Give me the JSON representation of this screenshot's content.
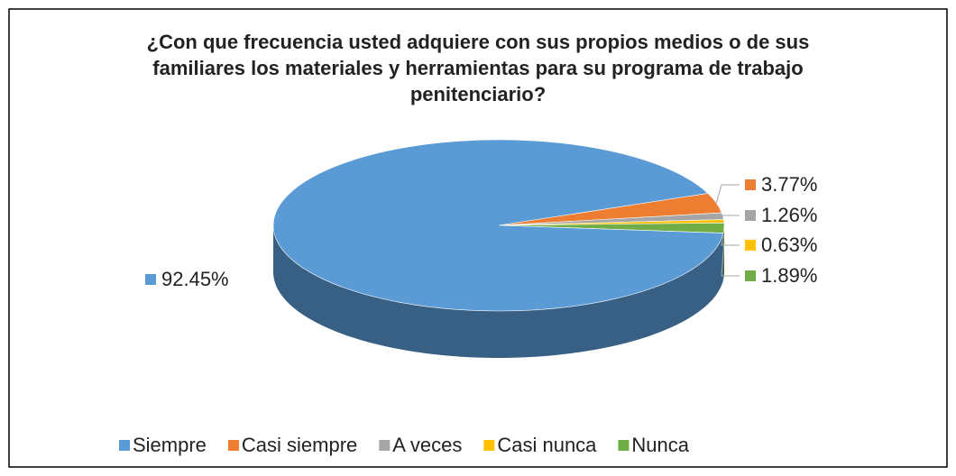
{
  "chart_data": {
    "type": "pie",
    "title": "¿Con que frecuencia usted adquiere con sus propios medios o de sus familiares los materiales y herramientas para su programa de trabajo penitenciario?",
    "categories": [
      "Siempre",
      "Casi siempre",
      "A veces",
      "Casi nunca",
      "Nunca"
    ],
    "values": [
      92.45,
      3.77,
      1.26,
      0.63,
      1.89
    ],
    "value_labels": [
      "92.45%",
      "3.77%",
      "1.26%",
      "0.63%",
      "1.89%"
    ],
    "colors": [
      "#5b9bd5",
      "#ed7d31",
      "#a5a5a5",
      "#ffc000",
      "#70ad47"
    ],
    "legend": "bottom"
  }
}
